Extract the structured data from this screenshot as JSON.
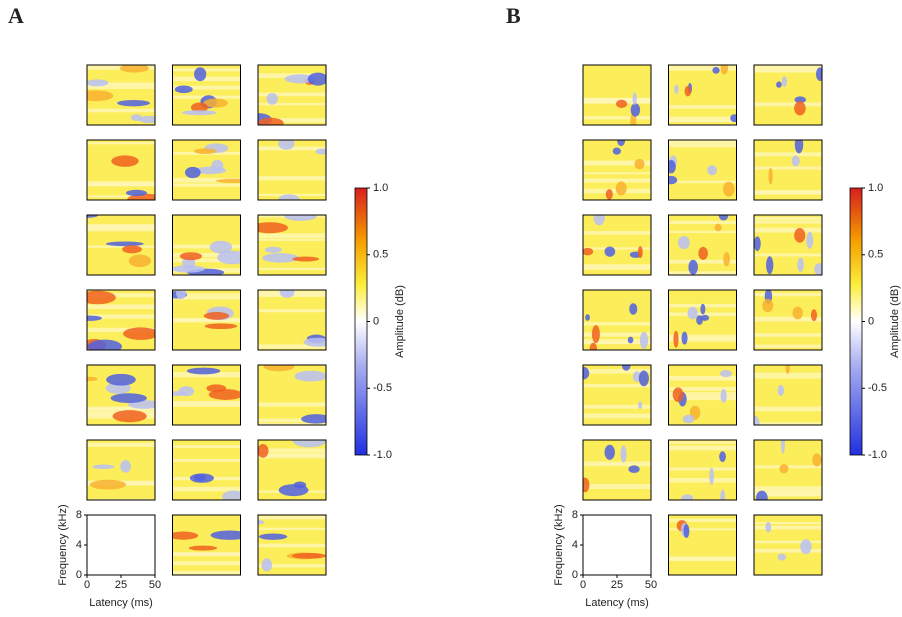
{
  "panels": [
    {
      "label": "A",
      "colorbar": {
        "label": "Amplitude (dB)",
        "lim": [
          -1,
          1
        ],
        "ticks": [
          {
            "value": 1,
            "label": "1.0"
          },
          0.5,
          0,
          -0.5,
          {
            "value": -1,
            "label": "-1.0"
          }
        ]
      },
      "x_axis": {
        "label": "Latency (ms)",
        "lim": [
          0,
          50
        ],
        "ticks": [
          0,
          25,
          50
        ]
      },
      "y_axis": {
        "label": "Frequency (kHz)",
        "lim": [
          0,
          8
        ],
        "ticks": [
          0,
          4,
          8
        ]
      }
    },
    {
      "label": "B",
      "colorbar": {
        "label": "Amplitude (dB)",
        "lim": [
          -1,
          1
        ],
        "ticks": [
          {
            "value": 1,
            "label": "1.0"
          },
          0.5,
          0,
          -0.5,
          {
            "value": -1,
            "label": "-1.0"
          }
        ]
      },
      "x_axis": {
        "label": "Latency (ms)",
        "lim": [
          0,
          50
        ],
        "ticks": [
          0,
          25,
          50
        ]
      },
      "y_axis": {
        "label": "Frequency (kHz)",
        "lim": [
          0,
          8
        ],
        "ticks": [
          0,
          4,
          8
        ]
      }
    }
  ]
}
